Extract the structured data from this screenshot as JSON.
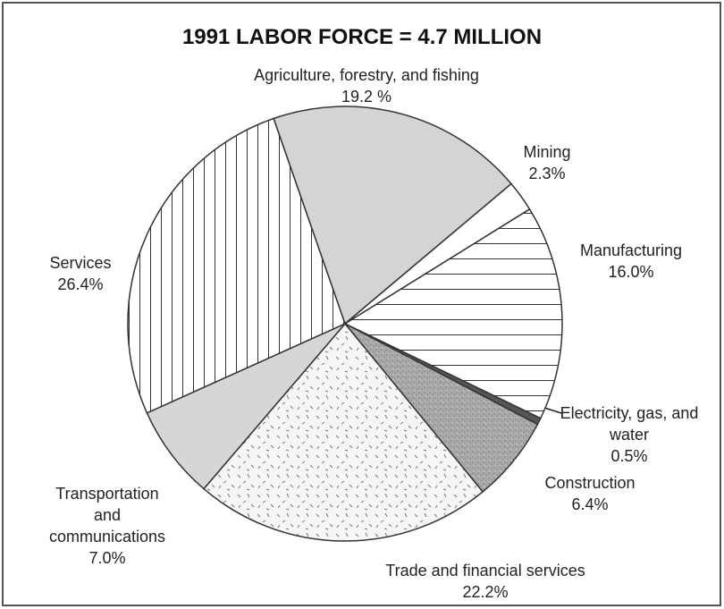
{
  "chart_data": {
    "type": "pie",
    "title": "1991 LABOR FORCE = 4.7 MILLION",
    "categories": [
      "Agriculture, forestry, and fishing",
      "Mining",
      "Manufacturing",
      "Electricity, gas, and water",
      "Construction",
      "Trade and financial services",
      "Transportation and communications",
      "Services"
    ],
    "values": [
      19.2,
      2.3,
      16.0,
      0.5,
      6.4,
      22.2,
      7.0,
      26.4
    ],
    "value_labels": [
      "19.2  %",
      "2.3%",
      "16.0%",
      "0.5%",
      "6.4%",
      "22.2%",
      "7.0%",
      "26.4%"
    ],
    "colors": [
      "#d4d4d4",
      "#ffffff",
      "#ffffff",
      "#555555",
      "#a9a9a9",
      "#f4f4f4",
      "#d6d6d6",
      "#ffffff"
    ],
    "patterns": [
      "solid",
      "solid",
      "horizontal",
      "solid",
      "speckle",
      "dashes",
      "solid",
      "vertical"
    ]
  }
}
